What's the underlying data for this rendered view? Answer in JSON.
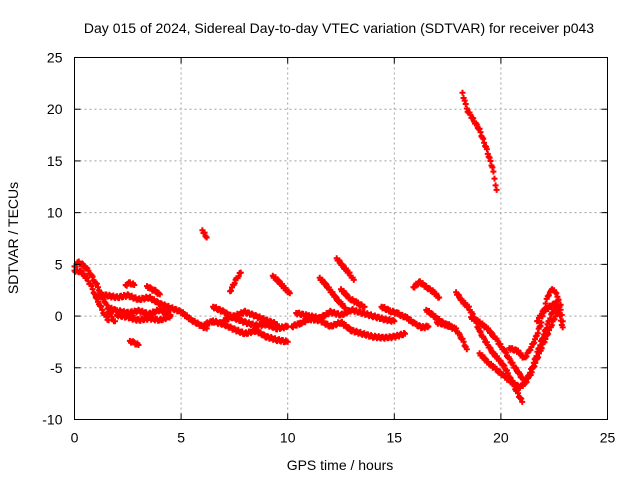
{
  "chart_data": {
    "type": "scatter",
    "title": "Day 015 of 2024, Sidereal Day-to-day VTEC variation (SDTVAR) for receiver p043",
    "xlabel": "GPS time / hours",
    "ylabel": "SDTVAR / TECUs",
    "xlim": [
      0,
      25
    ],
    "ylim": [
      -10,
      25
    ],
    "xticks": [
      0,
      5,
      10,
      15,
      20,
      25
    ],
    "yticks": [
      -10,
      -5,
      0,
      5,
      10,
      15,
      20,
      25
    ],
    "xtick_labels": [
      "0",
      "5",
      "10",
      "15",
      "20",
      "25"
    ],
    "ytick_labels": [
      "-10",
      "-5",
      "0",
      "5",
      "10",
      "15",
      "20",
      "25"
    ],
    "grid": true,
    "marker": "plus",
    "series": [
      {
        "name": "SDTVAR",
        "color": "#ff0000",
        "tracks": [
          [
            [
              0.0,
              4.8
            ],
            [
              0.2,
              5.2
            ],
            [
              0.4,
              4.9
            ],
            [
              0.6,
              4.5
            ],
            [
              0.8,
              3.9
            ],
            [
              1.0,
              3.2
            ],
            [
              1.2,
              2.4
            ],
            [
              1.4,
              1.5
            ],
            [
              1.6,
              0.5
            ],
            [
              1.8,
              -0.3
            ],
            [
              1.9,
              -0.5
            ]
          ],
          [
            [
              0.0,
              4.4
            ],
            [
              0.3,
              4.3
            ],
            [
              0.6,
              3.6
            ],
            [
              0.8,
              2.8
            ],
            [
              1.0,
              1.9
            ],
            [
              1.2,
              1.0
            ],
            [
              1.4,
              0.2
            ],
            [
              1.6,
              -0.4
            ]
          ],
          [
            [
              1.0,
              1.8
            ],
            [
              1.5,
              2.0
            ],
            [
              2.0,
              1.8
            ],
            [
              2.5,
              2.0
            ],
            [
              3.0,
              1.6
            ],
            [
              3.5,
              1.8
            ],
            [
              4.0,
              1.2
            ],
            [
              4.5,
              0.8
            ],
            [
              5.0,
              0.4
            ],
            [
              5.5,
              -0.4
            ],
            [
              6.0,
              -1.0
            ],
            [
              6.2,
              -1.2
            ]
          ],
          [
            [
              1.6,
              0.8
            ],
            [
              2.0,
              0.5
            ],
            [
              2.5,
              0.3
            ],
            [
              3.0,
              0.5
            ],
            [
              3.5,
              0.2
            ],
            [
              4.0,
              0.6
            ],
            [
              4.5,
              0.1
            ]
          ],
          [
            [
              2.0,
              0.1
            ],
            [
              2.5,
              -0.1
            ],
            [
              3.0,
              -0.4
            ],
            [
              3.5,
              -0.2
            ],
            [
              4.0,
              -0.4
            ],
            [
              4.5,
              0.0
            ]
          ],
          [
            [
              2.4,
              3.0
            ],
            [
              2.6,
              3.2
            ],
            [
              2.8,
              3.0
            ]
          ],
          [
            [
              3.4,
              2.9
            ],
            [
              3.6,
              2.6
            ],
            [
              3.8,
              2.4
            ],
            [
              4.0,
              2.1
            ]
          ],
          [
            [
              2.6,
              -2.4
            ],
            [
              2.8,
              -2.6
            ],
            [
              3.0,
              -2.8
            ]
          ],
          [
            [
              6.0,
              8.3
            ],
            [
              6.1,
              8.0
            ],
            [
              6.2,
              7.6
            ]
          ],
          [
            [
              6.1,
              -0.8
            ],
            [
              6.5,
              -0.5
            ],
            [
              7.0,
              -0.8
            ],
            [
              7.5,
              -1.3
            ],
            [
              8.0,
              -1.7
            ],
            [
              8.5,
              -1.4
            ],
            [
              9.0,
              -2.0
            ],
            [
              9.5,
              -2.3
            ],
            [
              10.0,
              -2.5
            ]
          ],
          [
            [
              6.5,
              0.9
            ],
            [
              7.0,
              0.4
            ],
            [
              7.5,
              -0.2
            ],
            [
              8.0,
              -0.6
            ],
            [
              8.5,
              -0.9
            ],
            [
              9.0,
              -0.8
            ],
            [
              9.5,
              -1.2
            ],
            [
              10.0,
              -1.0
            ]
          ],
          [
            [
              7.0,
              -0.4
            ],
            [
              7.5,
              0.0
            ],
            [
              8.0,
              0.4
            ],
            [
              8.5,
              0.0
            ],
            [
              9.0,
              -0.4
            ],
            [
              9.5,
              -0.8
            ]
          ],
          [
            [
              7.3,
              2.4
            ],
            [
              7.6,
              3.6
            ],
            [
              7.8,
              4.2
            ]
          ],
          [
            [
              9.3,
              3.9
            ],
            [
              9.6,
              3.3
            ],
            [
              9.9,
              2.6
            ],
            [
              10.1,
              2.2
            ]
          ],
          [
            [
              10.2,
              -1.0
            ],
            [
              10.6,
              -0.7
            ],
            [
              11.0,
              -0.3
            ],
            [
              11.5,
              -0.4
            ],
            [
              12.0,
              -1.0
            ],
            [
              12.5,
              -0.6
            ],
            [
              13.0,
              -1.4
            ],
            [
              13.5,
              -1.7
            ],
            [
              14.0,
              -2.0
            ],
            [
              14.5,
              -2.1
            ],
            [
              15.0,
              -2.0
            ],
            [
              15.5,
              -1.7
            ]
          ],
          [
            [
              10.4,
              0.3
            ],
            [
              11.0,
              0.0
            ],
            [
              11.5,
              -0.2
            ],
            [
              12.0,
              0.4
            ],
            [
              12.5,
              0.1
            ],
            [
              13.0,
              0.6
            ],
            [
              13.5,
              0.3
            ],
            [
              14.0,
              0.0
            ],
            [
              14.5,
              -0.3
            ],
            [
              15.0,
              -0.5
            ]
          ],
          [
            [
              11.5,
              3.7
            ],
            [
              11.8,
              3.0
            ],
            [
              12.1,
              2.2
            ],
            [
              12.4,
              1.4
            ],
            [
              12.7,
              0.8
            ]
          ],
          [
            [
              12.3,
              5.6
            ],
            [
              12.6,
              4.8
            ],
            [
              12.9,
              4.1
            ],
            [
              13.1,
              3.5
            ]
          ],
          [
            [
              12.5,
              2.6
            ],
            [
              12.9,
              1.7
            ],
            [
              13.3,
              1.2
            ],
            [
              13.6,
              0.9
            ]
          ],
          [
            [
              14.4,
              0.9
            ],
            [
              14.8,
              0.5
            ],
            [
              15.2,
              0.2
            ],
            [
              15.6,
              -0.2
            ],
            [
              16.0,
              -0.8
            ],
            [
              16.3,
              -1.1
            ],
            [
              16.6,
              -1.0
            ]
          ],
          [
            [
              15.9,
              2.8
            ],
            [
              16.2,
              3.3
            ],
            [
              16.5,
              2.8
            ],
            [
              16.8,
              2.4
            ],
            [
              17.1,
              1.8
            ]
          ],
          [
            [
              16.5,
              0.6
            ],
            [
              16.8,
              0.1
            ],
            [
              17.1,
              -0.4
            ],
            [
              17.4,
              -0.8
            ],
            [
              17.7,
              -1.0
            ]
          ],
          [
            [
              17.0,
              -0.6
            ],
            [
              17.5,
              -0.9
            ],
            [
              17.9,
              -1.3
            ],
            [
              18.2,
              -2.3
            ],
            [
              18.4,
              -3.2
            ]
          ],
          [
            [
              17.9,
              2.3
            ],
            [
              18.2,
              1.4
            ],
            [
              18.5,
              0.8
            ],
            [
              18.8,
              -0.4
            ],
            [
              19.0,
              -1.5
            ],
            [
              19.3,
              -2.5
            ],
            [
              19.6,
              -3.5
            ],
            [
              19.9,
              -4.2
            ],
            [
              20.2,
              -5.0
            ],
            [
              20.5,
              -6.3
            ],
            [
              20.8,
              -7.5
            ],
            [
              21.0,
              -8.3
            ]
          ],
          [
            [
              18.6,
              -0.1
            ],
            [
              19.0,
              -0.6
            ],
            [
              19.4,
              -1.3
            ],
            [
              19.8,
              -2.3
            ],
            [
              20.2,
              -3.5
            ],
            [
              20.5,
              -4.5
            ],
            [
              20.8,
              -5.4
            ],
            [
              21.1,
              -6.3
            ],
            [
              21.4,
              -5.6
            ],
            [
              21.7,
              -4.1
            ],
            [
              22.0,
              -2.6
            ],
            [
              22.3,
              -1.2
            ],
            [
              22.6,
              0.2
            ],
            [
              22.8,
              1.1
            ]
          ],
          [
            [
              19.0,
              -3.6
            ],
            [
              19.4,
              -4.5
            ],
            [
              19.8,
              -5.2
            ],
            [
              20.2,
              -5.9
            ],
            [
              20.6,
              -6.5
            ],
            [
              20.9,
              -6.9
            ],
            [
              21.2,
              -6.3
            ],
            [
              21.5,
              -4.8
            ],
            [
              21.8,
              -3.0
            ],
            [
              22.1,
              -1.3
            ],
            [
              22.4,
              0.3
            ],
            [
              22.7,
              1.6
            ]
          ],
          [
            [
              20.4,
              -3.1
            ],
            [
              20.8,
              -3.4
            ],
            [
              21.1,
              -4.1
            ],
            [
              21.3,
              -3.5
            ],
            [
              21.6,
              -2.3
            ],
            [
              21.9,
              -0.6
            ],
            [
              22.1,
              1.3
            ],
            [
              22.3,
              2.4
            ],
            [
              22.5,
              2.6
            ],
            [
              22.7,
              1.6
            ],
            [
              22.9,
              -0.5
            ]
          ],
          [
            [
              21.7,
              -0.5
            ],
            [
              22.0,
              0.5
            ],
            [
              22.3,
              0.9
            ],
            [
              22.6,
              1.3
            ],
            [
              22.9,
              -1.1
            ]
          ],
          [
            [
              18.2,
              21.6
            ],
            [
              18.4,
              20.0
            ],
            [
              18.7,
              19.0
            ],
            [
              19.0,
              18.0
            ],
            [
              19.3,
              16.3
            ],
            [
              19.6,
              14.4
            ],
            [
              19.8,
              12.2
            ]
          ]
        ]
      }
    ]
  }
}
